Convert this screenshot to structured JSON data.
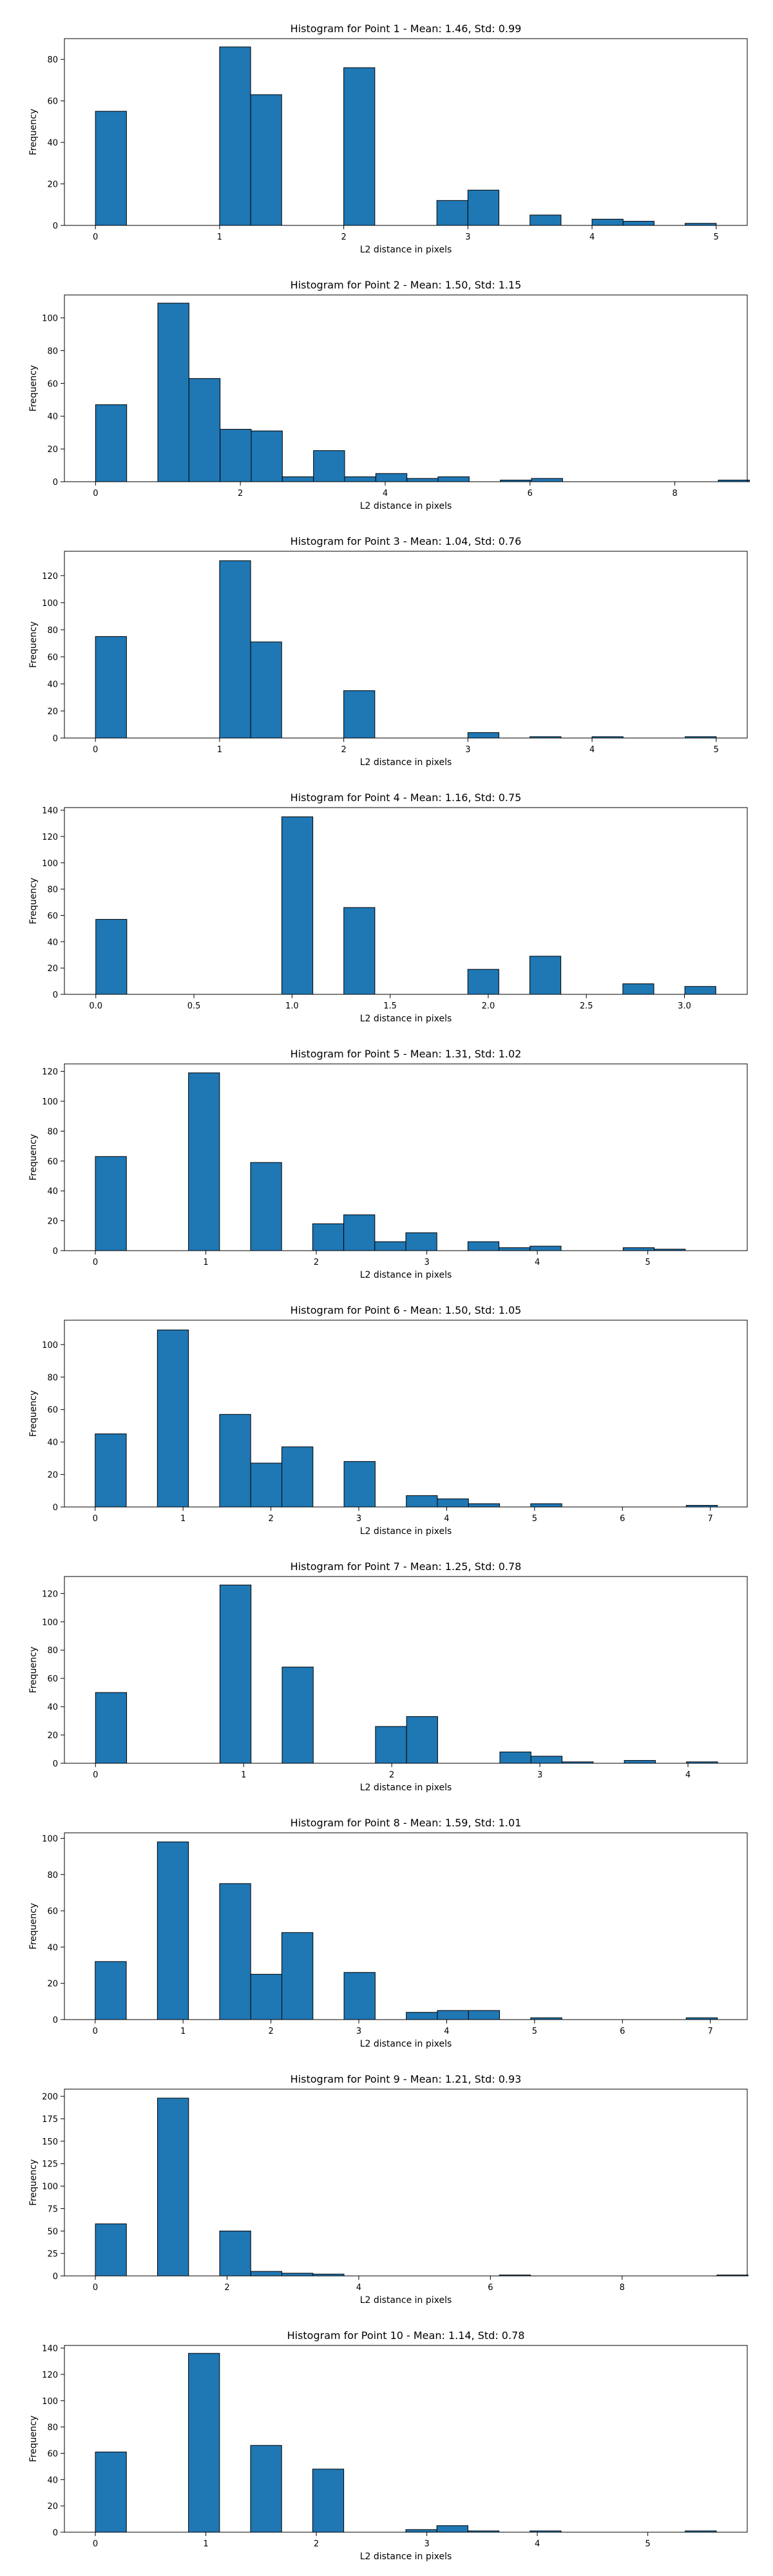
{
  "chart_data": [
    {
      "type": "bar",
      "title": "Histogram for Point 1 - Mean: 1.46, Std: 0.99",
      "xlabel": "L2 distance in pixels",
      "ylabel": "Frequency",
      "xlim": [
        -0.25,
        5.25
      ],
      "ylim": [
        0,
        90
      ],
      "xticks": [
        0,
        1,
        2,
        3,
        4,
        5
      ],
      "xtick_labels": [
        "0",
        "1",
        "2",
        "3",
        "4",
        "5"
      ],
      "yticks": [
        0,
        20,
        40,
        60,
        80
      ],
      "bar_width": 0.25,
      "bars": [
        {
          "x": 0.0,
          "value": 55
        },
        {
          "x": 1.0,
          "value": 86
        },
        {
          "x": 1.25,
          "value": 63
        },
        {
          "x": 2.0,
          "value": 76
        },
        {
          "x": 2.75,
          "value": 12
        },
        {
          "x": 3.0,
          "value": 17
        },
        {
          "x": 3.5,
          "value": 5
        },
        {
          "x": 4.0,
          "value": 3
        },
        {
          "x": 4.25,
          "value": 2
        },
        {
          "x": 4.75,
          "value": 1
        }
      ],
      "color": "#1f77b4",
      "grid": false
    },
    {
      "type": "bar",
      "title": "Histogram for Point 2 - Mean: 1.50, Std: 1.15",
      "xlabel": "L2 distance in pixels",
      "ylabel": "Frequency",
      "xlim": [
        -0.43,
        9.0
      ],
      "ylim": [
        0,
        114
      ],
      "xticks": [
        0,
        2,
        4,
        6,
        8
      ],
      "xtick_labels": [
        "0",
        "2",
        "4",
        "6",
        "8"
      ],
      "yticks": [
        0,
        20,
        40,
        60,
        80,
        100
      ],
      "bar_width": 0.43,
      "bars": [
        {
          "x": 0.0,
          "value": 47
        },
        {
          "x": 0.86,
          "value": 109
        },
        {
          "x": 1.29,
          "value": 63
        },
        {
          "x": 1.72,
          "value": 32
        },
        {
          "x": 2.15,
          "value": 31
        },
        {
          "x": 2.58,
          "value": 3
        },
        {
          "x": 3.01,
          "value": 19
        },
        {
          "x": 3.44,
          "value": 3
        },
        {
          "x": 3.87,
          "value": 5
        },
        {
          "x": 4.3,
          "value": 2
        },
        {
          "x": 4.73,
          "value": 3
        },
        {
          "x": 5.59,
          "value": 1
        },
        {
          "x": 6.02,
          "value": 2
        },
        {
          "x": 8.6,
          "value": 1
        }
      ],
      "color": "#1f77b4",
      "grid": false
    },
    {
      "type": "bar",
      "title": "Histogram for Point 3 - Mean: 1.04, Std: 0.76",
      "xlabel": "L2 distance in pixels",
      "ylabel": "Frequency",
      "xlim": [
        -0.25,
        5.25
      ],
      "ylim": [
        0,
        138
      ],
      "xticks": [
        0,
        1,
        2,
        3,
        4,
        5
      ],
      "xtick_labels": [
        "0",
        "1",
        "2",
        "3",
        "4",
        "5"
      ],
      "yticks": [
        0,
        20,
        40,
        60,
        80,
        100,
        120
      ],
      "bar_width": 0.25,
      "bars": [
        {
          "x": 0.0,
          "value": 75
        },
        {
          "x": 1.0,
          "value": 131
        },
        {
          "x": 1.25,
          "value": 71
        },
        {
          "x": 2.0,
          "value": 35
        },
        {
          "x": 3.0,
          "value": 4
        },
        {
          "x": 3.5,
          "value": 1
        },
        {
          "x": 4.0,
          "value": 1
        },
        {
          "x": 4.75,
          "value": 1
        }
      ],
      "color": "#1f77b4",
      "grid": false
    },
    {
      "type": "bar",
      "title": "Histogram for Point 4 - Mean: 1.16, Std: 0.75",
      "xlabel": "L2 distance in pixels",
      "ylabel": "Frequency",
      "xlim": [
        -0.16,
        3.32
      ],
      "ylim": [
        0,
        142
      ],
      "xticks": [
        0.0,
        0.5,
        1.0,
        1.5,
        2.0,
        2.5,
        3.0
      ],
      "xtick_labels": [
        "0.0",
        "0.5",
        "1.0",
        "1.5",
        "2.0",
        "2.5",
        "3.0"
      ],
      "yticks": [
        0,
        20,
        40,
        60,
        80,
        100,
        120,
        140
      ],
      "bar_width": 0.158,
      "bars": [
        {
          "x": 0.0,
          "value": 57
        },
        {
          "x": 0.948,
          "value": 135
        },
        {
          "x": 1.264,
          "value": 66
        },
        {
          "x": 1.896,
          "value": 19
        },
        {
          "x": 2.212,
          "value": 29
        },
        {
          "x": 2.686,
          "value": 8
        },
        {
          "x": 3.002,
          "value": 6
        }
      ],
      "color": "#1f77b4",
      "grid": false
    },
    {
      "type": "bar",
      "title": "Histogram for Point 5 - Mean: 1.31, Std: 1.02",
      "xlabel": "L2 distance in pixels",
      "ylabel": "Frequency",
      "xlim": [
        -0.28,
        5.9
      ],
      "ylim": [
        0,
        125
      ],
      "xticks": [
        0,
        1,
        2,
        3,
        4,
        5
      ],
      "xtick_labels": [
        "0",
        "1",
        "2",
        "3",
        "4",
        "5"
      ],
      "yticks": [
        0,
        20,
        40,
        60,
        80,
        100,
        120
      ],
      "bar_width": 0.281,
      "bars": [
        {
          "x": 0.0,
          "value": 63
        },
        {
          "x": 0.843,
          "value": 119
        },
        {
          "x": 1.405,
          "value": 59
        },
        {
          "x": 1.967,
          "value": 18
        },
        {
          "x": 2.248,
          "value": 24
        },
        {
          "x": 2.529,
          "value": 6
        },
        {
          "x": 2.81,
          "value": 12
        },
        {
          "x": 3.372,
          "value": 6
        },
        {
          "x": 3.653,
          "value": 2
        },
        {
          "x": 3.934,
          "value": 3
        },
        {
          "x": 4.777,
          "value": 2
        },
        {
          "x": 5.058,
          "value": 1
        }
      ],
      "color": "#1f77b4",
      "grid": false
    },
    {
      "type": "bar",
      "title": "Histogram for Point 6 - Mean: 1.50, Std: 1.05",
      "xlabel": "L2 distance in pixels",
      "ylabel": "Frequency",
      "xlim": [
        -0.35,
        7.42
      ],
      "ylim": [
        0,
        115
      ],
      "xticks": [
        0,
        1,
        2,
        3,
        4,
        5,
        6,
        7
      ],
      "xtick_labels": [
        "0",
        "1",
        "2",
        "3",
        "4",
        "5",
        "6",
        "7"
      ],
      "yticks": [
        0,
        20,
        40,
        60,
        80,
        100
      ],
      "bar_width": 0.354,
      "bars": [
        {
          "x": 0.0,
          "value": 45
        },
        {
          "x": 0.708,
          "value": 109
        },
        {
          "x": 1.416,
          "value": 57
        },
        {
          "x": 1.77,
          "value": 27
        },
        {
          "x": 2.124,
          "value": 37
        },
        {
          "x": 2.832,
          "value": 28
        },
        {
          "x": 3.54,
          "value": 7
        },
        {
          "x": 3.894,
          "value": 5
        },
        {
          "x": 4.248,
          "value": 2
        },
        {
          "x": 4.956,
          "value": 2
        },
        {
          "x": 6.726,
          "value": 1
        }
      ],
      "color": "#1f77b4",
      "grid": false
    },
    {
      "type": "bar",
      "title": "Histogram for Point 7 - Mean: 1.25, Std: 0.78",
      "xlabel": "L2 distance in pixels",
      "ylabel": "Frequency",
      "xlim": [
        -0.21,
        4.4
      ],
      "ylim": [
        0,
        132
      ],
      "xticks": [
        0,
        1,
        2,
        3,
        4
      ],
      "xtick_labels": [
        "0",
        "1",
        "2",
        "3",
        "4"
      ],
      "yticks": [
        0,
        20,
        40,
        60,
        80,
        100,
        120
      ],
      "bar_width": 0.21,
      "bars": [
        {
          "x": 0.0,
          "value": 50
        },
        {
          "x": 0.84,
          "value": 126
        },
        {
          "x": 1.26,
          "value": 68
        },
        {
          "x": 1.89,
          "value": 26
        },
        {
          "x": 2.1,
          "value": 33
        },
        {
          "x": 2.73,
          "value": 8
        },
        {
          "x": 2.94,
          "value": 5
        },
        {
          "x": 3.15,
          "value": 1
        },
        {
          "x": 3.57,
          "value": 2
        },
        {
          "x": 3.99,
          "value": 1
        }
      ],
      "color": "#1f77b4",
      "grid": false
    },
    {
      "type": "bar",
      "title": "Histogram for Point 8 - Mean: 1.59, Std: 1.01",
      "xlabel": "L2 distance in pixels",
      "ylabel": "Frequency",
      "xlim": [
        -0.35,
        7.42
      ],
      "ylim": [
        0,
        103
      ],
      "xticks": [
        0,
        1,
        2,
        3,
        4,
        5,
        6,
        7
      ],
      "xtick_labels": [
        "0",
        "1",
        "2",
        "3",
        "4",
        "5",
        "6",
        "7"
      ],
      "yticks": [
        0,
        20,
        40,
        60,
        80,
        100
      ],
      "bar_width": 0.354,
      "bars": [
        {
          "x": 0.0,
          "value": 32
        },
        {
          "x": 0.708,
          "value": 98
        },
        {
          "x": 1.416,
          "value": 75
        },
        {
          "x": 1.77,
          "value": 25
        },
        {
          "x": 2.124,
          "value": 48
        },
        {
          "x": 2.832,
          "value": 26
        },
        {
          "x": 3.54,
          "value": 4
        },
        {
          "x": 3.894,
          "value": 5
        },
        {
          "x": 4.248,
          "value": 5
        },
        {
          "x": 4.956,
          "value": 1
        },
        {
          "x": 6.726,
          "value": 1
        }
      ],
      "color": "#1f77b4",
      "grid": false
    },
    {
      "type": "bar",
      "title": "Histogram for Point 9 - Mean: 1.21, Std: 0.93",
      "xlabel": "L2 distance in pixels",
      "ylabel": "Frequency",
      "xlim": [
        -0.47,
        9.9
      ],
      "ylim": [
        0,
        208
      ],
      "xticks": [
        0,
        2,
        4,
        6,
        8
      ],
      "xtick_labels": [
        "0",
        "2",
        "4",
        "6",
        "8"
      ],
      "yticks": [
        0,
        25,
        50,
        75,
        100,
        125,
        150,
        175,
        200
      ],
      "bar_width": 0.472,
      "bars": [
        {
          "x": 0.0,
          "value": 58
        },
        {
          "x": 0.944,
          "value": 198
        },
        {
          "x": 1.888,
          "value": 50
        },
        {
          "x": 2.36,
          "value": 5
        },
        {
          "x": 2.832,
          "value": 3
        },
        {
          "x": 3.304,
          "value": 2
        },
        {
          "x": 6.136,
          "value": 1
        },
        {
          "x": 9.44,
          "value": 1
        }
      ],
      "color": "#1f77b4",
      "grid": false
    },
    {
      "type": "bar",
      "title": "Histogram for Point 10 - Mean: 1.14, Std: 0.78",
      "xlabel": "L2 distance in pixels",
      "ylabel": "Frequency",
      "xlim": [
        -0.28,
        5.9
      ],
      "ylim": [
        0,
        142
      ],
      "xticks": [
        0,
        1,
        2,
        3,
        4,
        5
      ],
      "xtick_labels": [
        "0",
        "1",
        "2",
        "3",
        "4",
        "5"
      ],
      "yticks": [
        0,
        20,
        40,
        60,
        80,
        100,
        120,
        140
      ],
      "bar_width": 0.281,
      "bars": [
        {
          "x": 0.0,
          "value": 61
        },
        {
          "x": 0.843,
          "value": 136
        },
        {
          "x": 1.405,
          "value": 66
        },
        {
          "x": 1.967,
          "value": 48
        },
        {
          "x": 2.81,
          "value": 2
        },
        {
          "x": 3.091,
          "value": 5
        },
        {
          "x": 3.372,
          "value": 1
        },
        {
          "x": 3.934,
          "value": 1
        },
        {
          "x": 5.339,
          "value": 1
        }
      ],
      "color": "#1f77b4",
      "grid": false
    }
  ]
}
